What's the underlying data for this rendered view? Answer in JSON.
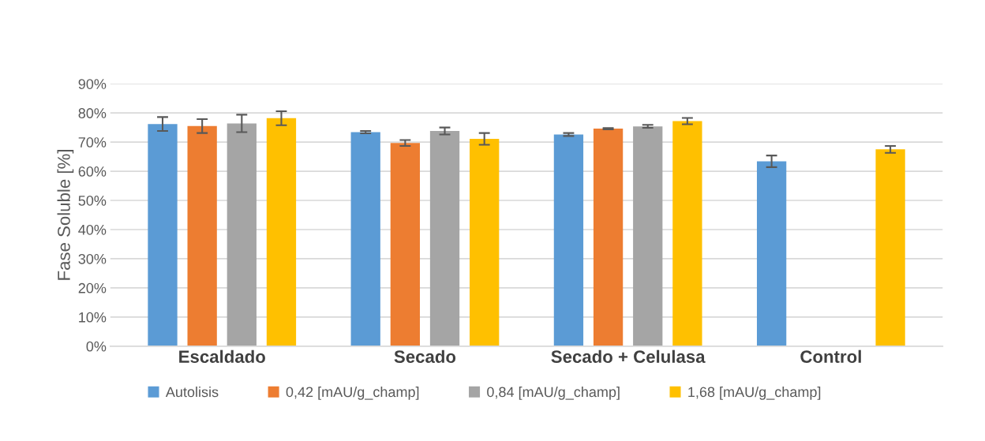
{
  "chart_data": {
    "type": "bar",
    "ylabel": "Fase Soluble [%]",
    "categories": [
      "Escaldado",
      "Secado",
      "Secado + Celulasa",
      "Control"
    ],
    "series": [
      {
        "name": "Autolisis",
        "color": "#5b9bd5",
        "values": [
          76.2,
          73.4,
          72.6,
          63.4
        ],
        "errors": [
          2.4,
          0.4,
          0.5,
          2.0
        ]
      },
      {
        "name": "0,42 [mAU/g_champ]",
        "color": "#ed7d31",
        "values": [
          75.5,
          69.7,
          74.6,
          null
        ],
        "errors": [
          2.4,
          1.0,
          0.2,
          null
        ]
      },
      {
        "name": "0,84 [mAU/g_champ]",
        "color": "#a5a5a5",
        "values": [
          76.4,
          73.8,
          75.4,
          null
        ],
        "errors": [
          3.0,
          1.2,
          0.5,
          null
        ]
      },
      {
        "name": "1,68 [mAU/g_champ]",
        "color": "#ffc000",
        "values": [
          78.2,
          71.1,
          77.2,
          67.5
        ],
        "errors": [
          2.4,
          2.0,
          1.1,
          1.2
        ]
      }
    ],
    "ylim": [
      0,
      90
    ],
    "yticks": [
      {
        "value": 0,
        "label": "0%"
      },
      {
        "value": 10,
        "label": "10%"
      },
      {
        "value": 20,
        "label": "20%"
      },
      {
        "value": 30,
        "label": "30%"
      },
      {
        "value": 40,
        "label": "40%"
      },
      {
        "value": 50,
        "label": "50%"
      },
      {
        "value": 60,
        "label": "60%"
      },
      {
        "value": 70,
        "label": "70%"
      },
      {
        "value": 80,
        "label": "80%"
      },
      {
        "value": 90,
        "label": "90%"
      }
    ],
    "grid": "y",
    "legend": "bottom"
  }
}
